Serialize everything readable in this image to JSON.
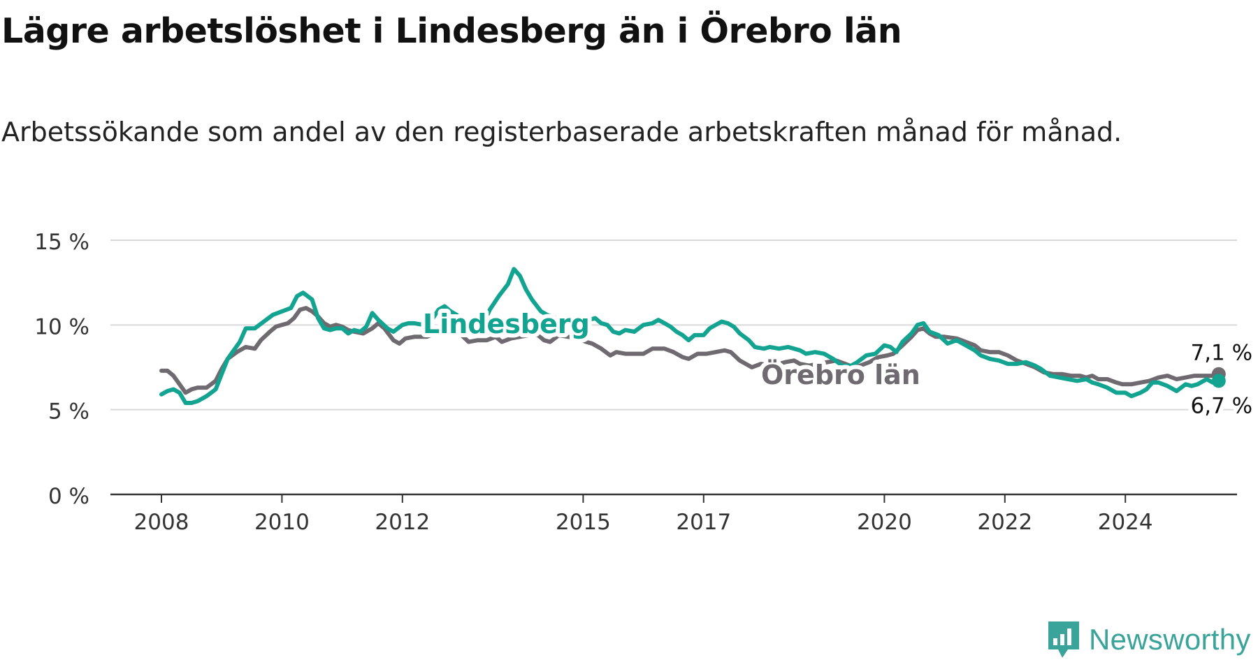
{
  "title": "Lägre arbetslöshet i Lindesberg än i Örebro län",
  "subtitle": "Arbetssökande som andel av den registerbaserade arbetskraften månad för månad.",
  "brand": {
    "name": "Newsworthy",
    "icon": "newsworthy-logo-icon",
    "color": "#3aa39a"
  },
  "chart_data": {
    "type": "line",
    "x_ticks": [
      "2008",
      "2010",
      "2012",
      "2015",
      "2017",
      "2020",
      "2022",
      "2024"
    ],
    "y_ticks": [
      "0 %",
      "5 %",
      "10 %",
      "15 %"
    ],
    "ylim": [
      0,
      15
    ],
    "grid": true,
    "series": [
      {
        "name": "Örebro län",
        "color": "#6e6a70",
        "end_label": "7,1 %",
        "points": [
          [
            2008.0,
            7.3
          ],
          [
            2008.1,
            7.3
          ],
          [
            2008.2,
            7.0
          ],
          [
            2008.3,
            6.5
          ],
          [
            2008.4,
            6.0
          ],
          [
            2008.5,
            6.2
          ],
          [
            2008.6,
            6.3
          ],
          [
            2008.75,
            6.3
          ],
          [
            2008.9,
            6.7
          ],
          [
            2009.0,
            7.4
          ],
          [
            2009.1,
            8.0
          ],
          [
            2009.25,
            8.4
          ],
          [
            2009.4,
            8.7
          ],
          [
            2009.55,
            8.6
          ],
          [
            2009.65,
            9.1
          ],
          [
            2009.8,
            9.6
          ],
          [
            2009.9,
            9.9
          ],
          [
            2010.0,
            10.0
          ],
          [
            2010.1,
            10.1
          ],
          [
            2010.2,
            10.4
          ],
          [
            2010.3,
            10.9
          ],
          [
            2010.4,
            11.0
          ],
          [
            2010.5,
            10.8
          ],
          [
            2010.6,
            10.5
          ],
          [
            2010.7,
            10.1
          ],
          [
            2010.8,
            9.9
          ],
          [
            2010.9,
            10.0
          ],
          [
            2011.0,
            9.9
          ],
          [
            2011.1,
            9.7
          ],
          [
            2011.2,
            9.6
          ],
          [
            2011.35,
            9.5
          ],
          [
            2011.5,
            9.8
          ],
          [
            2011.6,
            10.1
          ],
          [
            2011.7,
            9.8
          ],
          [
            2011.85,
            9.1
          ],
          [
            2011.95,
            8.9
          ],
          [
            2012.05,
            9.2
          ],
          [
            2012.2,
            9.3
          ],
          [
            2012.4,
            9.3
          ],
          [
            2012.55,
            9.5
          ],
          [
            2012.65,
            9.8
          ],
          [
            2012.8,
            9.8
          ],
          [
            2012.95,
            9.5
          ],
          [
            2013.1,
            9.0
          ],
          [
            2013.25,
            9.1
          ],
          [
            2013.4,
            9.1
          ],
          [
            2013.55,
            9.3
          ],
          [
            2013.65,
            9.0
          ],
          [
            2013.8,
            9.2
          ],
          [
            2013.95,
            9.3
          ],
          [
            2014.1,
            9.4
          ],
          [
            2014.25,
            9.4
          ],
          [
            2014.35,
            9.1
          ],
          [
            2014.45,
            9.0
          ],
          [
            2014.6,
            9.4
          ],
          [
            2014.75,
            9.3
          ],
          [
            2014.9,
            9.2
          ],
          [
            2015.05,
            9.0
          ],
          [
            2015.15,
            8.9
          ],
          [
            2015.3,
            8.6
          ],
          [
            2015.45,
            8.2
          ],
          [
            2015.55,
            8.4
          ],
          [
            2015.7,
            8.3
          ],
          [
            2015.85,
            8.3
          ],
          [
            2016.0,
            8.3
          ],
          [
            2016.15,
            8.6
          ],
          [
            2016.35,
            8.6
          ],
          [
            2016.5,
            8.4
          ],
          [
            2016.65,
            8.1
          ],
          [
            2016.75,
            8.0
          ],
          [
            2016.9,
            8.3
          ],
          [
            2017.05,
            8.3
          ],
          [
            2017.2,
            8.4
          ],
          [
            2017.35,
            8.5
          ],
          [
            2017.45,
            8.4
          ],
          [
            2017.6,
            7.9
          ],
          [
            2017.8,
            7.5
          ],
          [
            2017.95,
            7.7
          ],
          [
            2018.15,
            7.6
          ],
          [
            2018.35,
            7.8
          ],
          [
            2018.5,
            7.9
          ],
          [
            2018.6,
            7.7
          ],
          [
            2018.75,
            7.6
          ],
          [
            2018.9,
            7.7
          ],
          [
            2019.05,
            7.8
          ],
          [
            2019.2,
            7.9
          ],
          [
            2019.35,
            7.7
          ],
          [
            2019.5,
            7.5
          ],
          [
            2019.6,
            7.6
          ],
          [
            2019.75,
            7.8
          ],
          [
            2019.9,
            8.1
          ],
          [
            2020.05,
            8.2
          ],
          [
            2020.15,
            8.3
          ],
          [
            2020.3,
            8.8
          ],
          [
            2020.45,
            9.3
          ],
          [
            2020.55,
            9.7
          ],
          [
            2020.65,
            9.8
          ],
          [
            2020.75,
            9.5
          ],
          [
            2020.85,
            9.3
          ],
          [
            2021.0,
            9.3
          ],
          [
            2021.2,
            9.2
          ],
          [
            2021.35,
            9.0
          ],
          [
            2021.5,
            8.8
          ],
          [
            2021.6,
            8.5
          ],
          [
            2021.75,
            8.4
          ],
          [
            2021.9,
            8.4
          ],
          [
            2022.05,
            8.2
          ],
          [
            2022.2,
            7.9
          ],
          [
            2022.35,
            7.7
          ],
          [
            2022.5,
            7.5
          ],
          [
            2022.65,
            7.2
          ],
          [
            2022.8,
            7.1
          ],
          [
            2022.95,
            7.1
          ],
          [
            2023.1,
            7.0
          ],
          [
            2023.25,
            7.0
          ],
          [
            2023.35,
            6.9
          ],
          [
            2023.45,
            7.0
          ],
          [
            2023.55,
            6.8
          ],
          [
            2023.7,
            6.8
          ],
          [
            2023.85,
            6.6
          ],
          [
            2023.95,
            6.5
          ],
          [
            2024.1,
            6.5
          ],
          [
            2024.25,
            6.6
          ],
          [
            2024.4,
            6.7
          ],
          [
            2024.55,
            6.9
          ],
          [
            2024.7,
            7.0
          ],
          [
            2024.85,
            6.8
          ],
          [
            2025.0,
            6.9
          ],
          [
            2025.15,
            7.0
          ],
          [
            2025.3,
            7.0
          ],
          [
            2025.45,
            7.0
          ],
          [
            2025.55,
            7.1
          ]
        ]
      },
      {
        "name": "Lindesberg",
        "color": "#13a391",
        "end_label": "6,7 %",
        "points": [
          [
            2008.0,
            5.9
          ],
          [
            2008.1,
            6.1
          ],
          [
            2008.2,
            6.2
          ],
          [
            2008.3,
            6.0
          ],
          [
            2008.4,
            5.4
          ],
          [
            2008.5,
            5.4
          ],
          [
            2008.6,
            5.5
          ],
          [
            2008.75,
            5.8
          ],
          [
            2008.9,
            6.2
          ],
          [
            2009.0,
            7.1
          ],
          [
            2009.1,
            8.0
          ],
          [
            2009.2,
            8.5
          ],
          [
            2009.3,
            9.0
          ],
          [
            2009.4,
            9.8
          ],
          [
            2009.55,
            9.8
          ],
          [
            2009.7,
            10.2
          ],
          [
            2009.85,
            10.6
          ],
          [
            2010.0,
            10.8
          ],
          [
            2010.15,
            11.0
          ],
          [
            2010.25,
            11.7
          ],
          [
            2010.35,
            11.9
          ],
          [
            2010.5,
            11.5
          ],
          [
            2010.6,
            10.4
          ],
          [
            2010.7,
            9.8
          ],
          [
            2010.8,
            9.7
          ],
          [
            2010.9,
            9.8
          ],
          [
            2011.0,
            9.8
          ],
          [
            2011.1,
            9.5
          ],
          [
            2011.2,
            9.7
          ],
          [
            2011.3,
            9.6
          ],
          [
            2011.4,
            9.9
          ],
          [
            2011.5,
            10.7
          ],
          [
            2011.6,
            10.3
          ],
          [
            2011.75,
            9.8
          ],
          [
            2011.85,
            9.6
          ],
          [
            2012.0,
            10.0
          ],
          [
            2012.1,
            10.1
          ],
          [
            2012.2,
            10.1
          ],
          [
            2012.35,
            10.0
          ],
          [
            2012.45,
            10.1
          ],
          [
            2012.6,
            10.9
          ],
          [
            2012.7,
            11.1
          ],
          [
            2012.8,
            10.8
          ],
          [
            2012.9,
            10.6
          ],
          [
            2013.05,
            10.2
          ],
          [
            2013.2,
            10.5
          ],
          [
            2013.35,
            10.1
          ],
          [
            2013.45,
            10.9
          ],
          [
            2013.6,
            11.7
          ],
          [
            2013.75,
            12.4
          ],
          [
            2013.85,
            13.3
          ],
          [
            2013.95,
            12.9
          ],
          [
            2014.05,
            12.1
          ],
          [
            2014.15,
            11.5
          ],
          [
            2014.3,
            10.8
          ],
          [
            2014.4,
            10.6
          ],
          [
            2014.55,
            10.4
          ],
          [
            2014.7,
            10.2
          ],
          [
            2014.85,
            10.0
          ],
          [
            2015.0,
            10.1
          ],
          [
            2015.1,
            10.3
          ],
          [
            2015.2,
            10.4
          ],
          [
            2015.3,
            10.1
          ],
          [
            2015.4,
            10.0
          ],
          [
            2015.5,
            9.6
          ],
          [
            2015.6,
            9.5
          ],
          [
            2015.7,
            9.7
          ],
          [
            2015.85,
            9.6
          ],
          [
            2016.0,
            10.0
          ],
          [
            2016.15,
            10.1
          ],
          [
            2016.25,
            10.3
          ],
          [
            2016.35,
            10.1
          ],
          [
            2016.45,
            9.9
          ],
          [
            2016.55,
            9.6
          ],
          [
            2016.65,
            9.4
          ],
          [
            2016.75,
            9.1
          ],
          [
            2016.85,
            9.4
          ],
          [
            2017.0,
            9.4
          ],
          [
            2017.1,
            9.8
          ],
          [
            2017.2,
            10.0
          ],
          [
            2017.3,
            10.2
          ],
          [
            2017.4,
            10.1
          ],
          [
            2017.5,
            9.9
          ],
          [
            2017.6,
            9.5
          ],
          [
            2017.75,
            9.1
          ],
          [
            2017.85,
            8.7
          ],
          [
            2018.0,
            8.6
          ],
          [
            2018.1,
            8.7
          ],
          [
            2018.25,
            8.6
          ],
          [
            2018.4,
            8.7
          ],
          [
            2018.5,
            8.6
          ],
          [
            2018.6,
            8.5
          ],
          [
            2018.7,
            8.3
          ],
          [
            2018.85,
            8.4
          ],
          [
            2019.0,
            8.3
          ],
          [
            2019.15,
            8.0
          ],
          [
            2019.3,
            7.6
          ],
          [
            2019.45,
            7.6
          ],
          [
            2019.55,
            7.8
          ],
          [
            2019.7,
            8.2
          ],
          [
            2019.85,
            8.3
          ],
          [
            2020.0,
            8.8
          ],
          [
            2020.1,
            8.7
          ],
          [
            2020.2,
            8.4
          ],
          [
            2020.3,
            9.0
          ],
          [
            2020.45,
            9.5
          ],
          [
            2020.55,
            10.0
          ],
          [
            2020.65,
            10.1
          ],
          [
            2020.75,
            9.6
          ],
          [
            2020.9,
            9.4
          ],
          [
            2021.05,
            8.9
          ],
          [
            2021.2,
            9.1
          ],
          [
            2021.35,
            8.8
          ],
          [
            2021.5,
            8.5
          ],
          [
            2021.6,
            8.2
          ],
          [
            2021.75,
            8.0
          ],
          [
            2021.9,
            7.9
          ],
          [
            2022.05,
            7.7
          ],
          [
            2022.2,
            7.7
          ],
          [
            2022.35,
            7.8
          ],
          [
            2022.5,
            7.6
          ],
          [
            2022.6,
            7.4
          ],
          [
            2022.75,
            7.0
          ],
          [
            2022.9,
            6.9
          ],
          [
            2023.05,
            6.8
          ],
          [
            2023.2,
            6.7
          ],
          [
            2023.35,
            6.8
          ],
          [
            2023.45,
            6.6
          ],
          [
            2023.55,
            6.5
          ],
          [
            2023.7,
            6.3
          ],
          [
            2023.85,
            6.0
          ],
          [
            2024.0,
            6.0
          ],
          [
            2024.1,
            5.8
          ],
          [
            2024.25,
            6.0
          ],
          [
            2024.35,
            6.2
          ],
          [
            2024.45,
            6.6
          ],
          [
            2024.55,
            6.6
          ],
          [
            2024.7,
            6.4
          ],
          [
            2024.85,
            6.1
          ],
          [
            2025.0,
            6.5
          ],
          [
            2025.1,
            6.4
          ],
          [
            2025.2,
            6.5
          ],
          [
            2025.35,
            6.8
          ],
          [
            2025.45,
            6.6
          ],
          [
            2025.55,
            6.7
          ]
        ]
      }
    ]
  }
}
